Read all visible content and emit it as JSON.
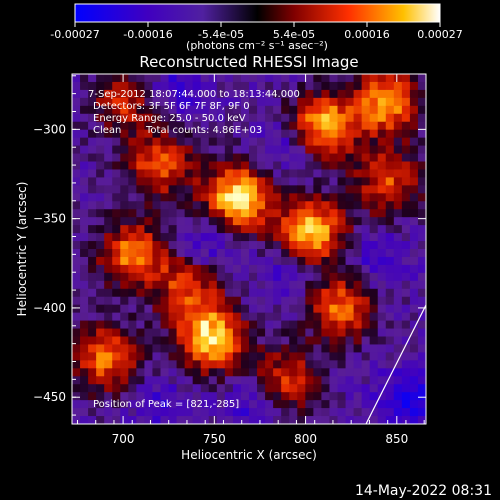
{
  "chart_data": {
    "type": "heatmap",
    "title": "Reconstructed RHESSI Image",
    "xlabel": "Heliocentric X (arcsec)",
    "ylabel": "Heliocentric Y (arcsec)",
    "xlim": [
      672,
      866
    ],
    "ylim": [
      -465,
      -269
    ],
    "x_ticks": [
      700,
      750,
      800,
      850
    ],
    "y_ticks": [
      -300,
      -350,
      -400,
      -450
    ],
    "colorbar": {
      "ticks": [
        "-0.00027",
        "-0.00016",
        "-5.4e-05",
        "5.4e-05",
        "0.00016",
        "0.00027"
      ],
      "values": [
        -0.00027,
        -0.00016,
        -5.4e-05,
        5.4e-05,
        0.00016,
        0.00027
      ],
      "units_label": "(photons cm⁻² s⁻¹ asec⁻²)"
    },
    "annotations": {
      "time_range": "7-Sep-2012 18:07:44.000 to 18:13:44.000",
      "detectors": "Detectors: 3F 5F 6F 7F 8F, 9F 0",
      "energy": "Energy Range: 25.0 - 50.0 keV",
      "method": "Clean",
      "total_counts": "Total counts: 4.86E+03",
      "peak": "Position of Peak = [821,-285]"
    },
    "hotspots": [
      {
        "x": 763,
        "y": -338,
        "level": 1.0
      },
      {
        "x": 748,
        "y": -417,
        "level": 0.95
      },
      {
        "x": 803,
        "y": -357,
        "level": 0.9
      },
      {
        "x": 810,
        "y": -298,
        "level": 0.85
      },
      {
        "x": 845,
        "y": -285,
        "level": 0.8
      },
      {
        "x": 705,
        "y": -370,
        "level": 0.75
      },
      {
        "x": 690,
        "y": -428,
        "level": 0.7
      },
      {
        "x": 820,
        "y": -400,
        "level": 0.7
      },
      {
        "x": 720,
        "y": -320,
        "level": 0.65
      },
      {
        "x": 790,
        "y": -440,
        "level": 0.55
      },
      {
        "x": 735,
        "y": -388,
        "level": 0.55
      },
      {
        "x": 845,
        "y": -330,
        "level": 0.6
      },
      {
        "x": 700,
        "y": -285,
        "level": 0.5
      }
    ],
    "coldspots": [
      {
        "x": 730,
        "y": -275,
        "level": -0.6
      },
      {
        "x": 790,
        "y": -310,
        "level": -0.55
      },
      {
        "x": 745,
        "y": -365,
        "level": -0.6
      },
      {
        "x": 790,
        "y": -380,
        "level": -0.5
      },
      {
        "x": 855,
        "y": -450,
        "level": -0.9
      },
      {
        "x": 840,
        "y": -375,
        "level": -0.55
      },
      {
        "x": 720,
        "y": -455,
        "level": -0.5
      },
      {
        "x": 770,
        "y": -455,
        "level": -0.55
      }
    ]
  },
  "footer": {
    "datetime": "14-May-2022 08:31"
  }
}
